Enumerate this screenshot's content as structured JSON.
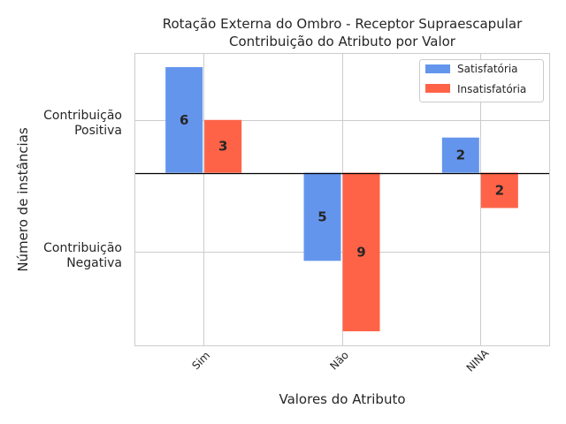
{
  "chart_data": {
    "type": "bar",
    "title_line1": "Rotação Externa do Ombro - Receptor Supraescapular",
    "title_line2": "Contribuição do Atributo por Valor",
    "xlabel": "Valores do Atributo",
    "ylabel": "Número de instâncias",
    "categories": [
      "Sim",
      "Não",
      "NINA"
    ],
    "series": [
      {
        "name": "Satisfatória",
        "values": [
          6,
          -5,
          2
        ],
        "labels": [
          "6",
          "5",
          "2"
        ],
        "color": "#6495ed"
      },
      {
        "name": "Insatisfatória",
        "values": [
          3,
          -9,
          -2
        ],
        "labels": [
          "3",
          "9",
          "2"
        ],
        "color": "#ff6347"
      }
    ],
    "ytick_labels": {
      "positive_line1": "Contribuição",
      "positive_line2": "Positiva",
      "negative_line1": "Contribuição",
      "negative_line2": "Negativa"
    },
    "ytick_values": [
      3,
      -4.5
    ],
    "ylim": [
      -9.8,
      6.8
    ],
    "grid": true,
    "legend_position": "top-right"
  }
}
